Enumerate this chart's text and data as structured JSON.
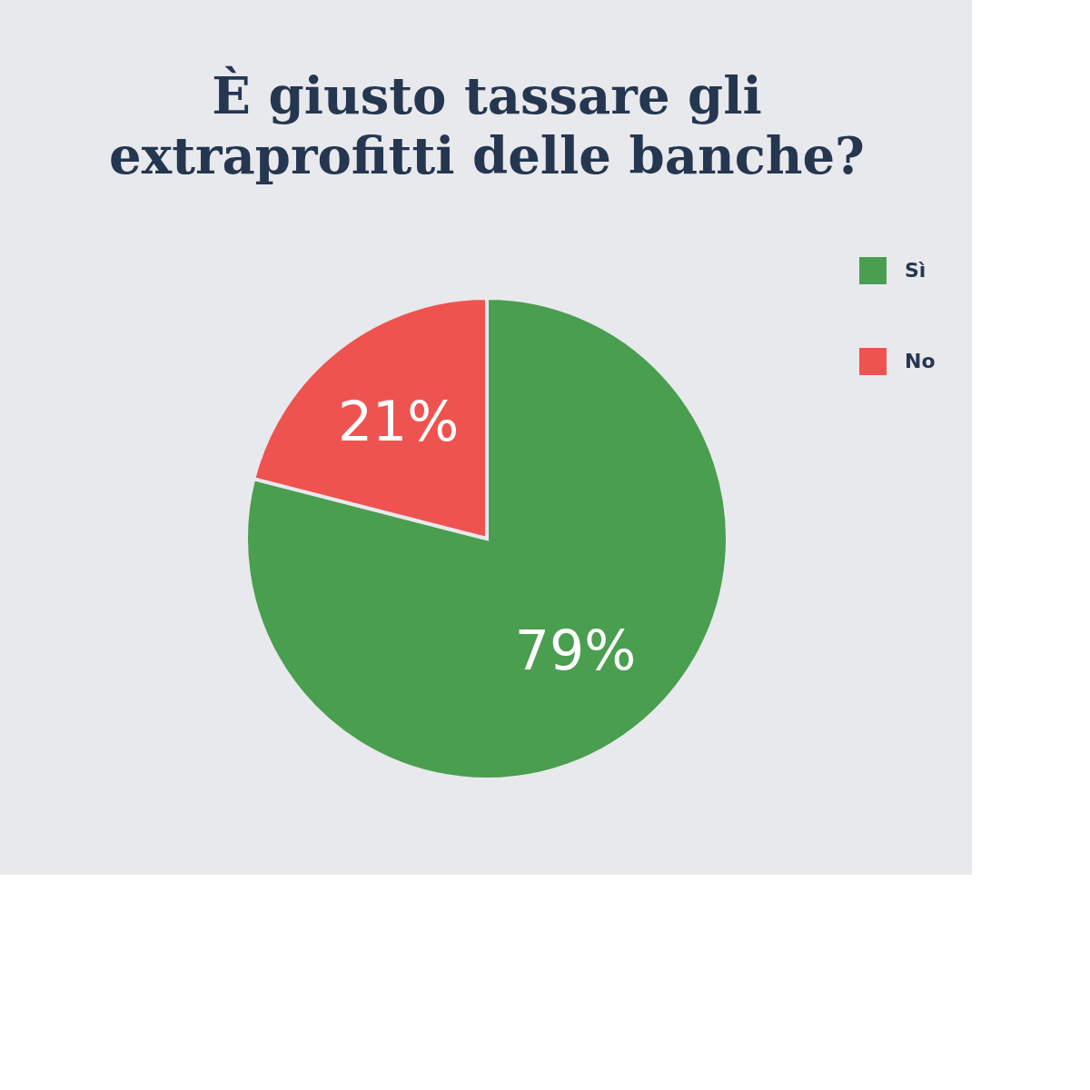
{
  "chart_data": {
    "type": "pie",
    "title": "È giusto tassare gli extraprofitti delle banche?",
    "categories": [
      "Sì",
      "No"
    ],
    "values": [
      79,
      21
    ],
    "colors": [
      "#4a9e4f",
      "#ef5350"
    ],
    "value_labels": [
      "79%",
      "21%"
    ],
    "legend": "right"
  }
}
